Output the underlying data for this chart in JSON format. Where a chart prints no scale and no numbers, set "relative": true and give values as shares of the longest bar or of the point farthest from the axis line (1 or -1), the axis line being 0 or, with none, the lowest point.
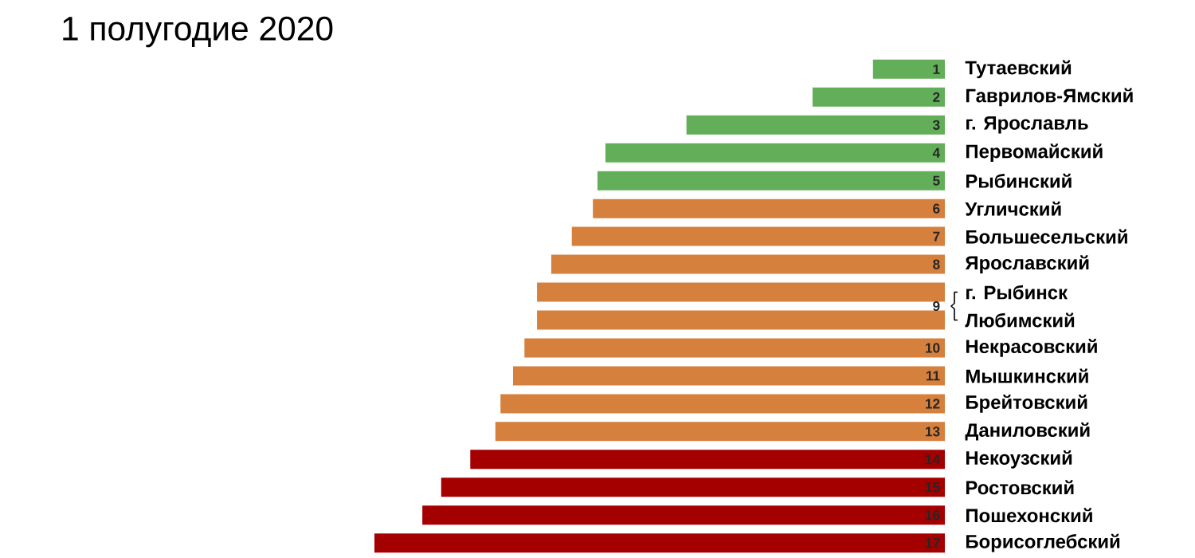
{
  "chart_data": {
    "type": "bar",
    "orientation": "horizontal",
    "relative": true,
    "title": "1 полугодие 2020",
    "categories": [
      "Тутаевский",
      "Гаврилов-Ямский",
      "г. Ярославль",
      "Первомайский",
      "Рыбинский",
      "Угличский",
      "Большесельский",
      "Ярославский",
      "г. Рыбинск",
      "Любимский",
      "Некрасовский",
      "Мышкинский",
      "Брейтовский",
      "Даниловский",
      "Некоузский",
      "Ростовский",
      "Пошехонский",
      "Борисоглебский"
    ],
    "values": [
      0.126,
      0.232,
      0.453,
      0.595,
      0.609,
      0.617,
      0.654,
      0.69,
      0.715,
      0.715,
      0.737,
      0.757,
      0.779,
      0.788,
      0.832,
      0.883,
      0.916,
      1
    ],
    "colors": [
      "#63ae59",
      "#63ae59",
      "#63ae59",
      "#63ae59",
      "#63ae59",
      "#d6803d",
      "#d6803d",
      "#d6803d",
      "#d6803d",
      "#d6803d",
      "#d6803d",
      "#d6803d",
      "#d6803d",
      "#d6803d",
      "#a50000",
      "#a50000",
      "#a50000",
      "#a50000"
    ],
    "annotations": [
      {
        "text": "1",
        "y": "Тутаевский"
      },
      {
        "text": "2",
        "y": "Гаврилов-Ямский"
      },
      {
        "text": "3",
        "y": "г. Ярославль"
      },
      {
        "text": "4",
        "y": "Первомайский"
      },
      {
        "text": "5",
        "y": "Рыбинский"
      },
      {
        "text": "6",
        "y": "Угличский"
      },
      {
        "text": "7",
        "y": "Большесельский"
      },
      {
        "text": "8",
        "y": "Ярославский"
      },
      {
        "text": "9",
        "y": "г. Рыбинск"
      },
      {
        "text": "10",
        "y": "Некрасовский"
      },
      {
        "text": "11",
        "y": "Мышкинский"
      },
      {
        "text": "12",
        "y": "Брейтовский"
      },
      {
        "text": "13",
        "y": "Даниловский"
      },
      {
        "text": "14",
        "y": "Некоузский"
      },
      {
        "text": "15",
        "y": "Ростовский"
      },
      {
        "text": "16",
        "y": "Пошехонский"
      },
      {
        "text": "17",
        "y": "Борисоглебский"
      }
    ]
  }
}
